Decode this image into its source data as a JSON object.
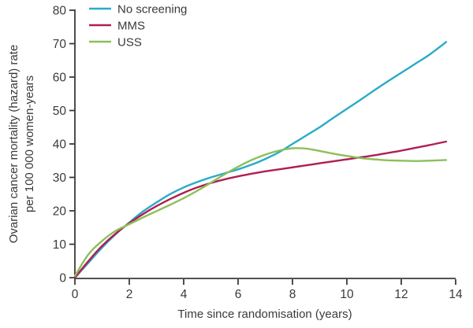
{
  "figure": {
    "background": "#ffffff",
    "text_color": "#3a3a3a",
    "axis_color": "#3a3a3a"
  },
  "chart_data": {
    "type": "line",
    "title": "",
    "xlabel": "Time since randomisation (years)",
    "ylabel_line1": "Ovarian cancer mortality (hazard) rate",
    "ylabel_line2": "per 100 000 women-years",
    "xlim": [
      0,
      14
    ],
    "ylim": [
      0,
      80
    ],
    "x_ticks": [
      0,
      2,
      4,
      6,
      8,
      10,
      12,
      14
    ],
    "y_ticks": [
      0,
      10,
      20,
      30,
      40,
      50,
      60,
      70,
      80
    ],
    "grid": false,
    "legend_position": "top-left",
    "x": [
      0,
      0.5,
      1,
      1.5,
      2,
      2.5,
      3,
      3.5,
      4,
      4.5,
      5,
      5.5,
      6,
      6.5,
      7,
      7.5,
      8,
      8.5,
      9,
      9.5,
      10,
      10.5,
      11,
      11.5,
      12,
      12.5,
      13,
      13.65
    ],
    "series": [
      {
        "name": "No screening",
        "color": "#29abc8",
        "values": [
          0,
          4.5,
          9,
          13,
          16.5,
          19.8,
          22.5,
          25,
          27,
          28.6,
          30,
          31.2,
          32.4,
          33.8,
          35.5,
          37.5,
          40,
          42.5,
          45,
          47.8,
          50.5,
          53.2,
          56,
          58.7,
          61.3,
          63.9,
          66.5,
          70.5
        ]
      },
      {
        "name": "MMS",
        "color": "#b01e52",
        "values": [
          0,
          5,
          9.5,
          13.2,
          16.3,
          19,
          21.4,
          23.5,
          25.4,
          27,
          28.3,
          29.4,
          30.3,
          31.1,
          31.8,
          32.4,
          33,
          33.6,
          34.2,
          34.8,
          35.4,
          36,
          36.6,
          37.3,
          38,
          38.8,
          39.6,
          40.7
        ]
      },
      {
        "name": "USS",
        "color": "#8cbf5c",
        "values": [
          0.5,
          7,
          11,
          14,
          16,
          18,
          19.9,
          21.8,
          23.8,
          26,
          28.4,
          30.9,
          33.2,
          35.2,
          36.8,
          38,
          38.7,
          38.6,
          37.9,
          37.1,
          36.4,
          35.8,
          35.4,
          35.1,
          35,
          34.9,
          35,
          35.2
        ]
      }
    ]
  }
}
